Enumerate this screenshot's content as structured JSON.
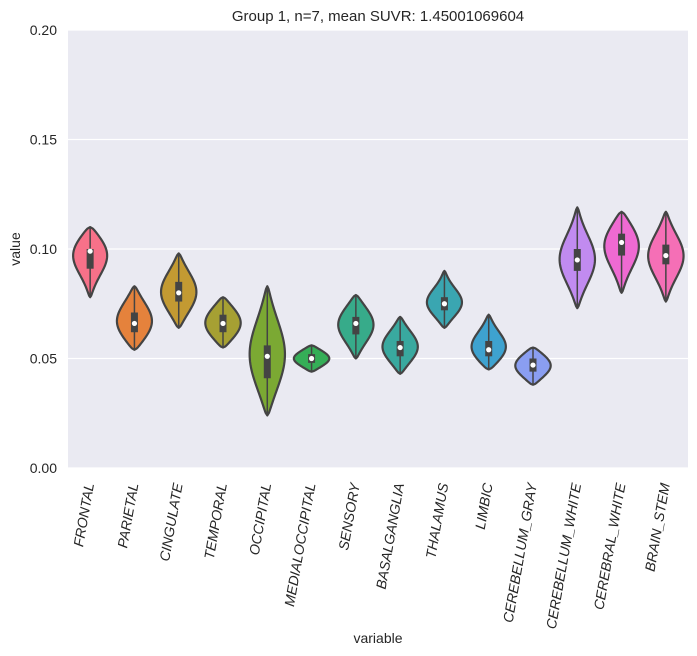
{
  "chart_data": {
    "type": "violin",
    "title": "Group 1, n=7, mean SUVR: 1.45001069604",
    "xlabel": "variable",
    "ylabel": "value",
    "ylim": [
      0.0,
      0.2
    ],
    "yticks": [
      "0.00",
      "0.05",
      "0.10",
      "0.15",
      "0.20"
    ],
    "grid": true,
    "categories": [
      "FRONTAL",
      "PARIETAL",
      "CINGULATE",
      "TEMPORAL",
      "OCCIPITAL",
      "MEDIALOCCIPITAL",
      "SENSORY",
      "BASALGANGLIA",
      "THALAMUS",
      "LIMBIC",
      "CEREBELLUM_GRAY",
      "CEREBELLUM_WHITE",
      "CEREBRAL_WHITE",
      "BRAIN_STEM"
    ],
    "series": [
      {
        "category": "FRONTAL",
        "color": "#f77189",
        "min": 0.078,
        "max": 0.11,
        "q1": 0.091,
        "q3": 0.1,
        "median": 0.099
      },
      {
        "category": "PARIETAL",
        "color": "#e5823c",
        "min": 0.054,
        "max": 0.083,
        "q1": 0.062,
        "q3": 0.071,
        "median": 0.066
      },
      {
        "category": "CINGULATE",
        "color": "#c39a32",
        "min": 0.064,
        "max": 0.098,
        "q1": 0.076,
        "q3": 0.085,
        "median": 0.08
      },
      {
        "category": "TEMPORAL",
        "color": "#a6a033",
        "min": 0.055,
        "max": 0.078,
        "q1": 0.062,
        "q3": 0.07,
        "median": 0.066
      },
      {
        "category": "OCCIPITAL",
        "color": "#7ba933",
        "min": 0.024,
        "max": 0.083,
        "q1": 0.041,
        "q3": 0.056,
        "median": 0.051
      },
      {
        "category": "MEDIALOCCIPITAL",
        "color": "#35ae57",
        "min": 0.044,
        "max": 0.056,
        "q1": 0.048,
        "q3": 0.052,
        "median": 0.05
      },
      {
        "category": "SENSORY",
        "color": "#37ab8a",
        "min": 0.05,
        "max": 0.079,
        "q1": 0.061,
        "q3": 0.069,
        "median": 0.066
      },
      {
        "category": "BASALGANGLIA",
        "color": "#39a99f",
        "min": 0.043,
        "max": 0.069,
        "q1": 0.051,
        "q3": 0.058,
        "median": 0.055
      },
      {
        "category": "THALAMUS",
        "color": "#3aa6b1",
        "min": 0.064,
        "max": 0.09,
        "q1": 0.072,
        "q3": 0.078,
        "median": 0.075
      },
      {
        "category": "LIMBIC",
        "color": "#3ea2cf",
        "min": 0.045,
        "max": 0.07,
        "q1": 0.051,
        "q3": 0.058,
        "median": 0.054
      },
      {
        "category": "CEREBELLUM_GRAY",
        "color": "#8a9ef1",
        "min": 0.038,
        "max": 0.055,
        "q1": 0.044,
        "q3": 0.05,
        "median": 0.047
      },
      {
        "category": "CEREBELLUM_WHITE",
        "color": "#c18bf0",
        "min": 0.073,
        "max": 0.119,
        "q1": 0.09,
        "q3": 0.1,
        "median": 0.095
      },
      {
        "category": "CEREBRAL_WHITE",
        "color": "#ef6ad2",
        "min": 0.08,
        "max": 0.117,
        "q1": 0.097,
        "q3": 0.107,
        "median": 0.103
      },
      {
        "category": "BRAIN_STEM",
        "color": "#f56fb6",
        "min": 0.076,
        "max": 0.117,
        "q1": 0.093,
        "q3": 0.102,
        "median": 0.097
      }
    ]
  }
}
